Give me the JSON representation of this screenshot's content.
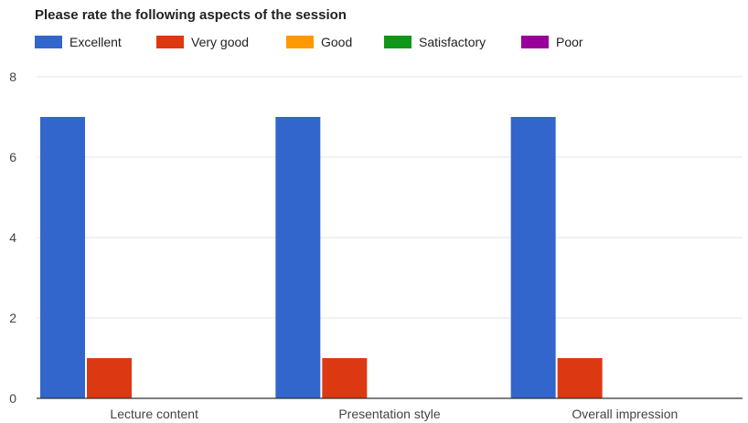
{
  "chart_data": {
    "type": "bar",
    "title": "Please rate the following aspects of the session",
    "categories": [
      "Lecture content",
      "Presentation style",
      "Overall impression"
    ],
    "series": [
      {
        "name": "Excellent",
        "color": "#3366cc",
        "values": [
          7,
          7,
          7
        ]
      },
      {
        "name": "Very good",
        "color": "#dc3912",
        "values": [
          1,
          1,
          1
        ]
      },
      {
        "name": "Good",
        "color": "#ff9900",
        "values": [
          0,
          0,
          0
        ]
      },
      {
        "name": "Satisfactory",
        "color": "#109618",
        "values": [
          0,
          0,
          0
        ]
      },
      {
        "name": "Poor",
        "color": "#990099",
        "values": [
          0,
          0,
          0
        ]
      }
    ],
    "ylim": [
      0,
      8
    ],
    "yticks": [
      "0",
      "2",
      "4",
      "6",
      "8"
    ],
    "grid": true,
    "legend_position": "top"
  }
}
